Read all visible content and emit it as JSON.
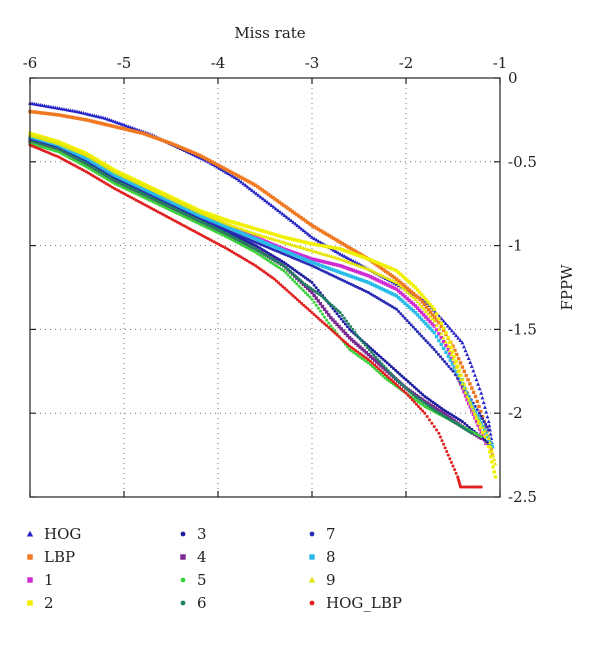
{
  "chart_data": {
    "type": "scatter",
    "title": "",
    "xlabel": "Miss rate",
    "ylabel": "FPPW",
    "xlim": [
      -6,
      -1
    ],
    "ylim": [
      -2.5,
      0
    ],
    "x_ticks": [
      "-6",
      "-5",
      "-4",
      "-3",
      "-2",
      "-1"
    ],
    "y_ticks": [
      "0",
      "-0.5",
      "-1",
      "-1.5",
      "-2",
      "-2.5"
    ],
    "x_axis_position": "top",
    "y_axis_position": "right",
    "grid": "dotted",
    "legend_position": "bottom",
    "series": [
      {
        "name": "HOG",
        "color": "#2323c8",
        "marker": "triangle",
        "points": [
          [
            -6.0,
            -0.15
          ],
          [
            -5.8,
            -0.17
          ],
          [
            -5.5,
            -0.2
          ],
          [
            -5.2,
            -0.24
          ],
          [
            -5.0,
            -0.28
          ],
          [
            -4.7,
            -0.34
          ],
          [
            -4.4,
            -0.42
          ],
          [
            -4.1,
            -0.5
          ],
          [
            -3.8,
            -0.6
          ],
          [
            -3.5,
            -0.73
          ],
          [
            -3.2,
            -0.86
          ],
          [
            -3.0,
            -0.95
          ],
          [
            -2.7,
            -1.05
          ],
          [
            -2.4,
            -1.14
          ],
          [
            -2.1,
            -1.23
          ],
          [
            -1.8,
            -1.33
          ],
          [
            -1.6,
            -1.45
          ],
          [
            -1.4,
            -1.58
          ],
          [
            -1.3,
            -1.72
          ],
          [
            -1.2,
            -1.88
          ],
          [
            -1.12,
            -2.05
          ],
          [
            -1.08,
            -2.2
          ]
        ]
      },
      {
        "name": "LBP",
        "color": "#f07820",
        "marker": "square",
        "points": [
          [
            -6.0,
            -0.2
          ],
          [
            -5.7,
            -0.22
          ],
          [
            -5.4,
            -0.25
          ],
          [
            -5.1,
            -0.29
          ],
          [
            -4.8,
            -0.33
          ],
          [
            -4.5,
            -0.39
          ],
          [
            -4.2,
            -0.46
          ],
          [
            -3.9,
            -0.55
          ],
          [
            -3.6,
            -0.64
          ],
          [
            -3.3,
            -0.76
          ],
          [
            -3.0,
            -0.88
          ],
          [
            -2.7,
            -0.98
          ],
          [
            -2.4,
            -1.08
          ],
          [
            -2.1,
            -1.2
          ],
          [
            -1.85,
            -1.32
          ],
          [
            -1.65,
            -1.46
          ],
          [
            -1.5,
            -1.6
          ],
          [
            -1.38,
            -1.75
          ],
          [
            -1.26,
            -1.9
          ],
          [
            -1.15,
            -2.08
          ],
          [
            -1.08,
            -2.25
          ]
        ]
      },
      {
        "name": "1",
        "color": "#d22ad2",
        "marker": "square",
        "points": [
          [
            -6.0,
            -0.35
          ],
          [
            -5.7,
            -0.4
          ],
          [
            -5.4,
            -0.48
          ],
          [
            -5.1,
            -0.58
          ],
          [
            -4.8,
            -0.66
          ],
          [
            -4.5,
            -0.74
          ],
          [
            -4.2,
            -0.82
          ],
          [
            -3.9,
            -0.89
          ],
          [
            -3.6,
            -0.95
          ],
          [
            -3.3,
            -1.02
          ],
          [
            -3.0,
            -1.08
          ],
          [
            -2.7,
            -1.12
          ],
          [
            -2.4,
            -1.18
          ],
          [
            -2.1,
            -1.26
          ],
          [
            -1.9,
            -1.36
          ],
          [
            -1.7,
            -1.48
          ],
          [
            -1.55,
            -1.62
          ],
          [
            -1.45,
            -1.78
          ],
          [
            -1.35,
            -1.92
          ],
          [
            -1.25,
            -2.05
          ],
          [
            -1.15,
            -2.18
          ]
        ]
      },
      {
        "name": "2",
        "color": "#f0f000",
        "marker": "square",
        "points": [
          [
            -6.0,
            -0.33
          ],
          [
            -5.7,
            -0.38
          ],
          [
            -5.4,
            -0.45
          ],
          [
            -5.1,
            -0.55
          ],
          [
            -4.8,
            -0.63
          ],
          [
            -4.5,
            -0.71
          ],
          [
            -4.2,
            -0.79
          ],
          [
            -3.9,
            -0.85
          ],
          [
            -3.6,
            -0.9
          ],
          [
            -3.3,
            -0.95
          ],
          [
            -3.0,
            -0.99
          ],
          [
            -2.7,
            -1.02
          ],
          [
            -2.4,
            -1.08
          ],
          [
            -2.1,
            -1.15
          ],
          [
            -1.9,
            -1.25
          ],
          [
            -1.7,
            -1.38
          ],
          [
            -1.55,
            -1.55
          ],
          [
            -1.45,
            -1.72
          ],
          [
            -1.35,
            -1.88
          ],
          [
            -1.25,
            -2.03
          ],
          [
            -1.12,
            -2.2
          ],
          [
            -1.05,
            -2.38
          ]
        ]
      },
      {
        "name": "3",
        "color": "#1e1ea0",
        "marker": "dot",
        "points": [
          [
            -6.0,
            -0.36
          ],
          [
            -5.7,
            -0.41
          ],
          [
            -5.4,
            -0.5
          ],
          [
            -5.1,
            -0.6
          ],
          [
            -4.8,
            -0.68
          ],
          [
            -4.5,
            -0.76
          ],
          [
            -4.2,
            -0.84
          ],
          [
            -3.9,
            -0.92
          ],
          [
            -3.6,
            -1.0
          ],
          [
            -3.3,
            -1.1
          ],
          [
            -3.0,
            -1.22
          ],
          [
            -2.8,
            -1.36
          ],
          [
            -2.6,
            -1.5
          ],
          [
            -2.4,
            -1.6
          ],
          [
            -2.2,
            -1.7
          ],
          [
            -2.0,
            -1.8
          ],
          [
            -1.8,
            -1.9
          ],
          [
            -1.6,
            -1.98
          ],
          [
            -1.4,
            -2.05
          ],
          [
            -1.25,
            -2.12
          ],
          [
            -1.12,
            -2.18
          ]
        ]
      },
      {
        "name": "4",
        "color": "#7a2a90",
        "marker": "square",
        "points": [
          [
            -6.0,
            -0.38
          ],
          [
            -5.7,
            -0.43
          ],
          [
            -5.4,
            -0.52
          ],
          [
            -5.1,
            -0.62
          ],
          [
            -4.8,
            -0.7
          ],
          [
            -4.5,
            -0.78
          ],
          [
            -4.2,
            -0.86
          ],
          [
            -3.9,
            -0.94
          ],
          [
            -3.6,
            -1.02
          ],
          [
            -3.3,
            -1.12
          ],
          [
            -3.0,
            -1.28
          ],
          [
            -2.8,
            -1.43
          ],
          [
            -2.6,
            -1.55
          ],
          [
            -2.4,
            -1.65
          ],
          [
            -2.2,
            -1.75
          ],
          [
            -2.0,
            -1.85
          ],
          [
            -1.8,
            -1.93
          ],
          [
            -1.6,
            -2.0
          ],
          [
            -1.4,
            -2.08
          ],
          [
            -1.2,
            -2.15
          ]
        ]
      },
      {
        "name": "5",
        "color": "#3ad23a",
        "marker": "dot",
        "points": [
          [
            -6.0,
            -0.39
          ],
          [
            -5.7,
            -0.44
          ],
          [
            -5.4,
            -0.53
          ],
          [
            -5.1,
            -0.63
          ],
          [
            -4.8,
            -0.71
          ],
          [
            -4.5,
            -0.79
          ],
          [
            -4.2,
            -0.87
          ],
          [
            -3.9,
            -0.95
          ],
          [
            -3.6,
            -1.04
          ],
          [
            -3.3,
            -1.15
          ],
          [
            -3.0,
            -1.32
          ],
          [
            -2.8,
            -1.48
          ],
          [
            -2.6,
            -1.62
          ],
          [
            -2.4,
            -1.7
          ],
          [
            -2.2,
            -1.8
          ],
          [
            -2.0,
            -1.88
          ],
          [
            -1.8,
            -1.96
          ],
          [
            -1.6,
            -2.02
          ],
          [
            -1.4,
            -2.08
          ],
          [
            -1.2,
            -2.14
          ]
        ]
      },
      {
        "name": "6",
        "color": "#208060",
        "marker": "dot",
        "points": [
          [
            -6.0,
            -0.37
          ],
          [
            -5.7,
            -0.42
          ],
          [
            -5.4,
            -0.51
          ],
          [
            -5.1,
            -0.61
          ],
          [
            -4.8,
            -0.69
          ],
          [
            -4.5,
            -0.77
          ],
          [
            -4.2,
            -0.85
          ],
          [
            -3.9,
            -0.93
          ],
          [
            -3.6,
            -1.02
          ],
          [
            -3.3,
            -1.12
          ],
          [
            -3.1,
            -1.22
          ],
          [
            -2.9,
            -1.3
          ],
          [
            -2.7,
            -1.4
          ],
          [
            -2.5,
            -1.55
          ],
          [
            -2.3,
            -1.68
          ],
          [
            -2.1,
            -1.8
          ],
          [
            -1.9,
            -1.9
          ],
          [
            -1.7,
            -1.98
          ],
          [
            -1.5,
            -2.05
          ],
          [
            -1.3,
            -2.12
          ]
        ]
      },
      {
        "name": "7",
        "color": "#2a2ab4",
        "marker": "dot",
        "points": [
          [
            -6.0,
            -0.36
          ],
          [
            -5.7,
            -0.41
          ],
          [
            -5.4,
            -0.49
          ],
          [
            -5.1,
            -0.59
          ],
          [
            -4.8,
            -0.67
          ],
          [
            -4.5,
            -0.75
          ],
          [
            -4.2,
            -0.83
          ],
          [
            -3.9,
            -0.91
          ],
          [
            -3.6,
            -0.98
          ],
          [
            -3.3,
            -1.05
          ],
          [
            -3.0,
            -1.12
          ],
          [
            -2.7,
            -1.2
          ],
          [
            -2.4,
            -1.28
          ],
          [
            -2.1,
            -1.38
          ],
          [
            -1.9,
            -1.5
          ],
          [
            -1.7,
            -1.62
          ],
          [
            -1.5,
            -1.75
          ],
          [
            -1.35,
            -1.88
          ],
          [
            -1.22,
            -2.0
          ],
          [
            -1.12,
            -2.1
          ]
        ]
      },
      {
        "name": "8",
        "color": "#2abce8",
        "marker": "square",
        "points": [
          [
            -6.0,
            -0.35
          ],
          [
            -5.7,
            -0.4
          ],
          [
            -5.4,
            -0.48
          ],
          [
            -5.1,
            -0.58
          ],
          [
            -4.8,
            -0.66
          ],
          [
            -4.5,
            -0.74
          ],
          [
            -4.2,
            -0.82
          ],
          [
            -3.9,
            -0.89
          ],
          [
            -3.6,
            -0.96
          ],
          [
            -3.3,
            -1.03
          ],
          [
            -3.0,
            -1.1
          ],
          [
            -2.7,
            -1.16
          ],
          [
            -2.4,
            -1.22
          ],
          [
            -2.1,
            -1.3
          ],
          [
            -1.9,
            -1.4
          ],
          [
            -1.7,
            -1.52
          ],
          [
            -1.55,
            -1.66
          ],
          [
            -1.42,
            -1.8
          ],
          [
            -1.3,
            -1.95
          ],
          [
            -1.18,
            -2.08
          ],
          [
            -1.08,
            -2.2
          ]
        ]
      },
      {
        "name": "9",
        "color": "#e6e600",
        "marker": "triangle",
        "points": [
          [
            -6.0,
            -0.34
          ],
          [
            -5.7,
            -0.39
          ],
          [
            -5.4,
            -0.46
          ],
          [
            -5.1,
            -0.56
          ],
          [
            -4.8,
            -0.64
          ],
          [
            -4.5,
            -0.72
          ],
          [
            -4.2,
            -0.8
          ],
          [
            -3.9,
            -0.87
          ],
          [
            -3.6,
            -0.93
          ],
          [
            -3.3,
            -0.98
          ],
          [
            -3.0,
            -1.03
          ],
          [
            -2.7,
            -1.08
          ],
          [
            -2.4,
            -1.14
          ],
          [
            -2.1,
            -1.22
          ],
          [
            -1.9,
            -1.32
          ],
          [
            -1.7,
            -1.45
          ],
          [
            -1.55,
            -1.6
          ],
          [
            -1.45,
            -1.75
          ],
          [
            -1.35,
            -1.9
          ],
          [
            -1.25,
            -2.02
          ],
          [
            -1.12,
            -2.15
          ],
          [
            -1.05,
            -2.3
          ]
        ]
      },
      {
        "name": "HOG_LBP",
        "color": "#e02020",
        "marker": "dot",
        "points": [
          [
            -6.0,
            -0.4
          ],
          [
            -5.7,
            -0.47
          ],
          [
            -5.4,
            -0.56
          ],
          [
            -5.1,
            -0.66
          ],
          [
            -4.8,
            -0.75
          ],
          [
            -4.5,
            -0.84
          ],
          [
            -4.2,
            -0.93
          ],
          [
            -3.9,
            -1.02
          ],
          [
            -3.6,
            -1.12
          ],
          [
            -3.4,
            -1.2
          ],
          [
            -3.2,
            -1.3
          ],
          [
            -3.0,
            -1.4
          ],
          [
            -2.8,
            -1.5
          ],
          [
            -2.6,
            -1.6
          ],
          [
            -2.4,
            -1.68
          ],
          [
            -2.2,
            -1.78
          ],
          [
            -2.0,
            -1.88
          ],
          [
            -1.8,
            -2.0
          ],
          [
            -1.65,
            -2.12
          ],
          [
            -1.55,
            -2.25
          ],
          [
            -1.45,
            -2.38
          ],
          [
            -1.42,
            -2.44
          ],
          [
            -1.3,
            -2.44
          ],
          [
            -1.2,
            -2.44
          ]
        ]
      }
    ]
  }
}
